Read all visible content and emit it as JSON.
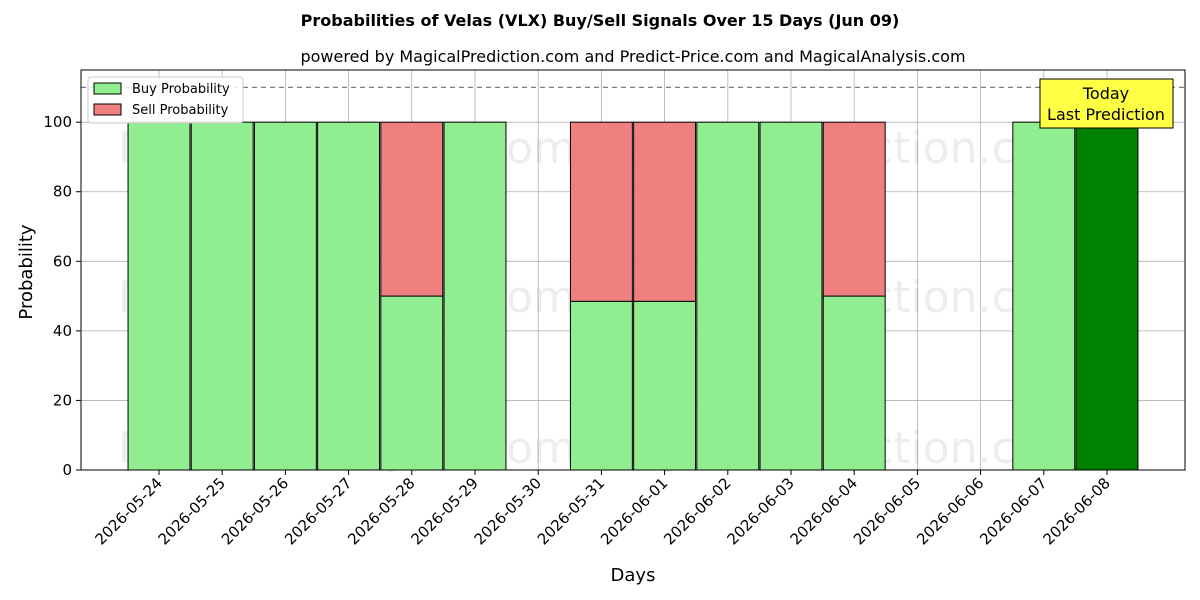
{
  "chart_data": {
    "type": "bar",
    "stacked": true,
    "title": "Probabilities of Velas (VLX) Buy/Sell Signals Over 15 Days (Jun 09)",
    "subtitle": "powered by MagicalPrediction.com and Predict-Price.com and MagicalAnalysis.com",
    "xlabel": "Days",
    "ylabel": "Probability",
    "ylim": [
      0,
      115
    ],
    "yticks": [
      0,
      20,
      40,
      60,
      80,
      100
    ],
    "reference_line": 110,
    "grid": true,
    "legend_position": "top-left",
    "categories": [
      "2026-05-24",
      "2026-05-25",
      "2026-05-26",
      "2026-05-27",
      "2026-05-28",
      "2026-05-29",
      "2026-05-30",
      "2026-05-31",
      "2026-06-01",
      "2026-06-02",
      "2026-06-03",
      "2026-06-04",
      "2026-06-05",
      "2026-06-06",
      "2026-06-07",
      "2026-06-08"
    ],
    "series": [
      {
        "name": "Buy Probability",
        "color": "#90ee90",
        "values": [
          100,
          100,
          100,
          100,
          50,
          100,
          null,
          48.5,
          48.5,
          100,
          100,
          50,
          null,
          null,
          100,
          100
        ]
      },
      {
        "name": "Sell Probability",
        "color": "#f08080",
        "values": [
          0,
          0,
          0,
          0,
          50,
          0,
          null,
          51.5,
          51.5,
          0,
          0,
          50,
          null,
          null,
          0,
          0
        ]
      }
    ],
    "highlight": {
      "category": "2026-06-08",
      "color": "#008000"
    },
    "annotation": {
      "lines": [
        "Today",
        "Last Prediction"
      ],
      "color": "#ffff44"
    },
    "watermarks": [
      "MagicalAnalysis.com",
      "MagicalPrediction.com"
    ]
  }
}
